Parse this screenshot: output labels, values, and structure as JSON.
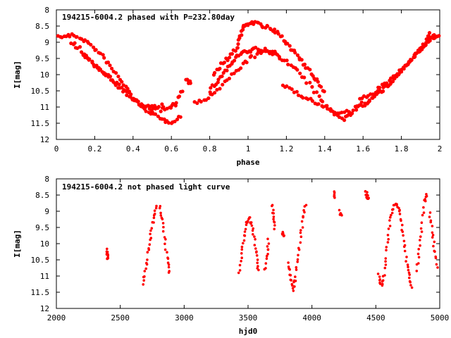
{
  "chart_data": [
    {
      "type": "scatter",
      "title": "194215-6004.2 phased with P=232.80day",
      "xlabel": "phase",
      "ylabel": "I[mag]",
      "xlim": [
        0,
        2
      ],
      "ylim": [
        8,
        12
      ],
      "y_inverted": true,
      "xticks": [
        0,
        0.2,
        0.4,
        0.6,
        0.8,
        1,
        1.2,
        1.4,
        1.6,
        1.8,
        2
      ],
      "xtick_labels": [
        "0",
        "0.2",
        "0.4",
        "0.6",
        "0.8",
        "1",
        "1.2",
        "1.4",
        "1.6",
        "1.8",
        "2"
      ],
      "yticks": [
        8,
        8.5,
        9,
        9.5,
        10,
        10.5,
        11,
        11.5,
        12
      ],
      "ytick_labels": [
        "8",
        "8.5",
        "9",
        "9.5",
        "10",
        "10.5",
        "11",
        "11.5",
        "12"
      ],
      "marker_color": "#ff0000",
      "grid": false,
      "segments": [
        [
          [
            0.0,
            8.85
          ],
          [
            0.05,
            8.8
          ],
          [
            0.1,
            8.8
          ],
          [
            0.15,
            8.95
          ],
          [
            0.2,
            9.2
          ],
          [
            0.25,
            9.5
          ],
          [
            0.3,
            9.9
          ],
          [
            0.35,
            10.3
          ],
          [
            0.4,
            10.7
          ],
          [
            0.45,
            11.0
          ],
          [
            0.5,
            11.2
          ],
          [
            0.55,
            11.4
          ],
          [
            0.6,
            11.45
          ],
          [
            0.65,
            11.3
          ]
        ],
        [
          [
            0.08,
            9.0
          ],
          [
            0.12,
            9.2
          ],
          [
            0.16,
            9.5
          ],
          [
            0.22,
            9.8
          ],
          [
            0.28,
            10.1
          ],
          [
            0.34,
            10.4
          ],
          [
            0.4,
            10.75
          ],
          [
            0.46,
            11.0
          ],
          [
            0.52,
            11.1
          ],
          [
            0.58,
            11.05
          ],
          [
            0.62,
            10.9
          ],
          [
            0.66,
            10.5
          ]
        ],
        [
          [
            0.14,
            9.4
          ],
          [
            0.2,
            9.7
          ],
          [
            0.26,
            10.0
          ],
          [
            0.32,
            10.35
          ],
          [
            0.38,
            10.65
          ],
          [
            0.44,
            10.95
          ],
          [
            0.5,
            11.0
          ],
          [
            0.56,
            10.95
          ]
        ],
        [
          [
            0.68,
            10.2
          ],
          [
            0.7,
            10.25
          ]
        ],
        [
          [
            0.72,
            10.9
          ],
          [
            0.78,
            10.75
          ],
          [
            0.84,
            10.5
          ],
          [
            0.9,
            10.1
          ],
          [
            0.96,
            9.75
          ],
          [
            1.02,
            9.45
          ],
          [
            1.08,
            9.3
          ],
          [
            1.14,
            9.35
          ],
          [
            1.2,
            9.6
          ],
          [
            1.26,
            9.9
          ],
          [
            1.32,
            10.3
          ],
          [
            1.38,
            10.8
          ],
          [
            1.44,
            11.15
          ],
          [
            1.5,
            11.35
          ],
          [
            1.54,
            11.2
          ]
        ],
        [
          [
            0.8,
            10.5
          ],
          [
            0.84,
            10.2
          ],
          [
            0.88,
            9.9
          ],
          [
            0.92,
            9.6
          ],
          [
            0.96,
            9.35
          ],
          [
            1.0,
            9.3
          ],
          [
            1.04,
            9.2
          ],
          [
            1.1,
            9.25
          ],
          [
            1.16,
            9.4
          ]
        ],
        [
          [
            0.82,
            10.0
          ],
          [
            0.86,
            9.7
          ],
          [
            0.9,
            9.45
          ],
          [
            0.94,
            9.2
          ],
          [
            0.96,
            8.8
          ],
          [
            0.98,
            8.5
          ],
          [
            1.0,
            8.4
          ],
          [
            1.04,
            8.4
          ],
          [
            1.08,
            8.5
          ],
          [
            1.12,
            8.6
          ],
          [
            1.16,
            8.75
          ],
          [
            1.2,
            9.0
          ],
          [
            1.24,
            9.3
          ],
          [
            1.28,
            9.6
          ],
          [
            1.32,
            9.9
          ],
          [
            1.36,
            10.2
          ],
          [
            1.4,
            10.55
          ]
        ],
        [
          [
            1.18,
            10.3
          ],
          [
            1.24,
            10.5
          ],
          [
            1.3,
            10.7
          ],
          [
            1.36,
            10.9
          ],
          [
            1.42,
            11.05
          ],
          [
            1.48,
            11.2
          ],
          [
            1.54,
            11.15
          ],
          [
            1.6,
            10.95
          ],
          [
            1.66,
            10.7
          ],
          [
            1.72,
            10.4
          ],
          [
            1.78,
            10.0
          ],
          [
            1.84,
            9.6
          ],
          [
            1.9,
            9.2
          ],
          [
            1.96,
            8.85
          ],
          [
            2.0,
            8.8
          ]
        ],
        [
          [
            1.56,
            11.0
          ],
          [
            1.62,
            10.85
          ],
          [
            1.68,
            10.55
          ],
          [
            1.74,
            10.25
          ],
          [
            1.8,
            9.9
          ],
          [
            1.86,
            9.5
          ],
          [
            1.92,
            9.1
          ],
          [
            1.95,
            8.7
          ]
        ],
        [
          [
            1.58,
            10.8
          ],
          [
            1.64,
            10.6
          ],
          [
            1.7,
            10.35
          ],
          [
            1.76,
            10.1
          ],
          [
            1.82,
            9.75
          ],
          [
            1.88,
            9.35
          ],
          [
            1.94,
            8.95
          ],
          [
            1.97,
            8.75
          ]
        ]
      ]
    },
    {
      "type": "scatter",
      "title": "194215-6004.2 not phased light curve",
      "xlabel": "hjd0",
      "ylabel": "I[mag]",
      "xlim": [
        2000,
        5000
      ],
      "ylim": [
        8,
        12
      ],
      "y_inverted": true,
      "xticks": [
        2000,
        2500,
        3000,
        3500,
        4000,
        4500,
        5000
      ],
      "xtick_labels": [
        "2000",
        "2500",
        "3000",
        "3500",
        "4000",
        "4500",
        "5000"
      ],
      "yticks": [
        8,
        8.5,
        9,
        9.5,
        10,
        10.5,
        11,
        11.5,
        12
      ],
      "ytick_labels": [
        "8",
        "8.5",
        "9",
        "9.5",
        "10",
        "10.5",
        "11",
        "11.5",
        "12"
      ],
      "marker_color": "#ff0000",
      "grid": false,
      "segments": [
        [
          [
            2395,
            10.2
          ],
          [
            2400,
            10.35
          ],
          [
            2405,
            10.5
          ]
        ],
        [
          [
            2680,
            11.2
          ],
          [
            2700,
            10.8
          ],
          [
            2720,
            10.2
          ],
          [
            2740,
            9.7
          ],
          [
            2760,
            9.2
          ],
          [
            2780,
            8.8
          ]
        ],
        [
          [
            2810,
            8.8
          ],
          [
            2830,
            9.3
          ],
          [
            2850,
            9.9
          ],
          [
            2870,
            10.5
          ],
          [
            2880,
            10.95
          ]
        ],
        [
          [
            3430,
            10.9
          ],
          [
            3450,
            10.3
          ],
          [
            3470,
            9.8
          ],
          [
            3490,
            9.35
          ],
          [
            3510,
            9.2
          ],
          [
            3530,
            9.45
          ],
          [
            3550,
            9.9
          ],
          [
            3570,
            10.4
          ],
          [
            3580,
            10.8
          ]
        ],
        [
          [
            3630,
            10.8
          ],
          [
            3650,
            10.3
          ],
          [
            3660,
            9.9
          ]
        ],
        [
          [
            3690,
            8.8
          ],
          [
            3700,
            9.2
          ],
          [
            3705,
            9.5
          ]
        ],
        [
          [
            3770,
            9.6
          ],
          [
            3780,
            9.8
          ]
        ],
        [
          [
            3810,
            10.6
          ],
          [
            3830,
            11.0
          ],
          [
            3850,
            11.4
          ],
          [
            3870,
            11.1
          ],
          [
            3890,
            10.5
          ],
          [
            3910,
            9.8
          ],
          [
            3930,
            9.2
          ],
          [
            3950,
            8.8
          ]
        ],
        [
          [
            4170,
            8.45
          ],
          [
            4180,
            8.55
          ]
        ],
        [
          [
            4220,
            9.0
          ],
          [
            4230,
            9.15
          ]
        ],
        [
          [
            4420,
            8.4
          ],
          [
            4430,
            8.5
          ],
          [
            4440,
            8.6
          ]
        ],
        [
          [
            4520,
            10.9
          ],
          [
            4540,
            11.3
          ],
          [
            4560,
            11.05
          ],
          [
            4580,
            10.4
          ],
          [
            4600,
            9.7
          ],
          [
            4620,
            9.1
          ],
          [
            4650,
            8.8
          ],
          [
            4680,
            8.85
          ],
          [
            4700,
            9.3
          ],
          [
            4720,
            9.9
          ],
          [
            4740,
            10.5
          ],
          [
            4760,
            11.0
          ],
          [
            4780,
            11.4
          ]
        ],
        [
          [
            4820,
            10.8
          ],
          [
            4840,
            10.2
          ],
          [
            4860,
            9.5
          ],
          [
            4880,
            8.7
          ],
          [
            4900,
            8.45
          ]
        ],
        [
          [
            4920,
            9.0
          ],
          [
            4940,
            9.6
          ],
          [
            4960,
            10.2
          ],
          [
            4980,
            10.7
          ]
        ]
      ]
    }
  ]
}
